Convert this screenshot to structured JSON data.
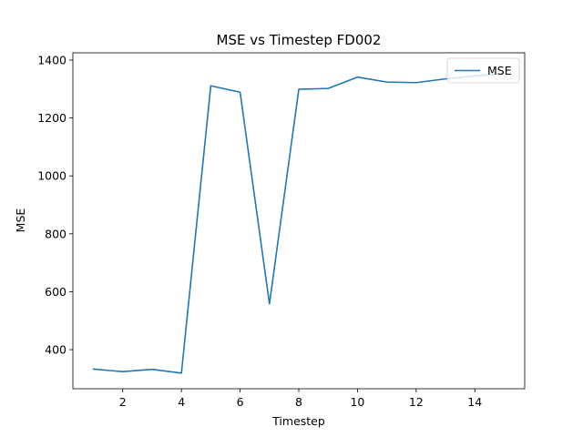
{
  "chart_data": {
    "type": "line",
    "title": "MSE vs Timestep FD002",
    "xlabel": "Timestep",
    "ylabel": "MSE",
    "xlim": [
      0.3,
      15.7
    ],
    "ylim": [
      265,
      1425
    ],
    "xticks": [
      2,
      4,
      6,
      8,
      10,
      12,
      14
    ],
    "yticks": [
      400,
      600,
      800,
      1000,
      1200,
      1400
    ],
    "grid": false,
    "legend_position": "upper-right",
    "series": [
      {
        "name": "MSE",
        "color": "#1f77b4",
        "x": [
          1,
          2,
          3,
          4,
          5,
          6,
          7,
          8,
          9,
          10,
          11,
          12,
          13,
          14,
          15
        ],
        "y": [
          333,
          324,
          332,
          319,
          1311,
          1289,
          558,
          1299,
          1302,
          1341,
          1324,
          1322,
          1335,
          1345,
          1353
        ]
      }
    ]
  }
}
